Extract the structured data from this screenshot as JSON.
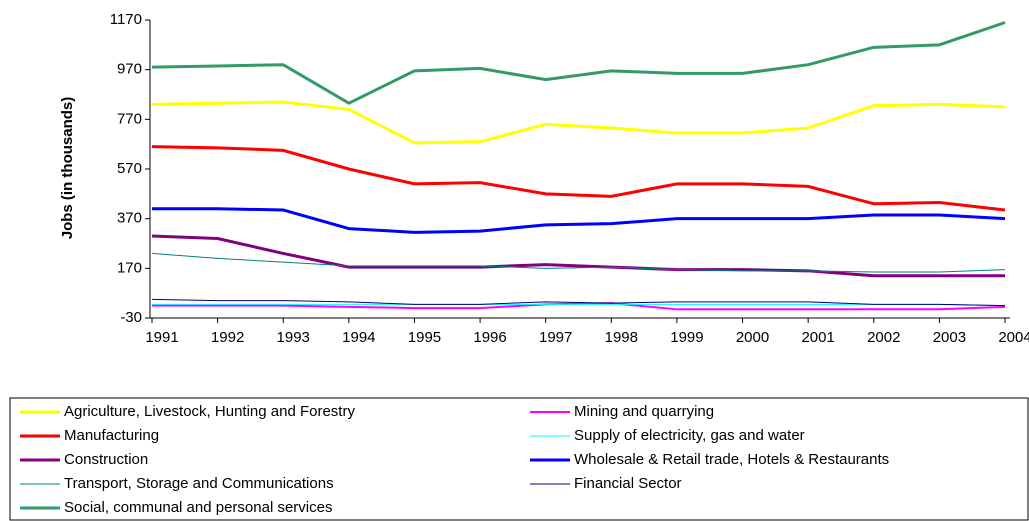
{
  "chart_data": {
    "type": "line",
    "y_label": "Jobs (in thousands)",
    "categories": [
      "1991",
      "1992",
      "1993",
      "1994",
      "1995",
      "1996",
      "1997",
      "1998",
      "1999",
      "2000",
      "2001",
      "2002",
      "2003",
      "2004"
    ],
    "ylim": [
      -30,
      1170
    ],
    "yticks": [
      -30,
      170,
      370,
      570,
      770,
      970,
      1170
    ],
    "grid": false,
    "series": [
      {
        "name": "Agriculture, Livestock, Hunting and Forestry",
        "color": "#ffff00",
        "line_width": 3,
        "values": [
          830,
          835,
          840,
          810,
          675,
          680,
          750,
          735,
          715,
          715,
          735,
          825,
          830,
          820
        ]
      },
      {
        "name": "Mining and quarrying",
        "color": "#ff00ff",
        "line_width": 2,
        "values": [
          20,
          20,
          20,
          15,
          10,
          10,
          25,
          30,
          5,
          5,
          5,
          5,
          5,
          15
        ]
      },
      {
        "name": "Manufacturing",
        "color": "#ff0000",
        "line_width": 3,
        "values": [
          660,
          655,
          645,
          570,
          510,
          515,
          470,
          460,
          510,
          510,
          500,
          430,
          435,
          405
        ]
      },
      {
        "name": "Supply of electricity, gas and water",
        "color": "#00ffff",
        "line_width": 1,
        "values": [
          25,
          25,
          25,
          25,
          25,
          25,
          25,
          25,
          25,
          25,
          25,
          25,
          25,
          20
        ]
      },
      {
        "name": "Construction",
        "color": "#800080",
        "line_width": 3,
        "values": [
          300,
          290,
          230,
          175,
          175,
          175,
          185,
          175,
          165,
          165,
          160,
          140,
          140,
          140
        ]
      },
      {
        "name": "Wholesale & Retail trade, Hotels &  Restaurants",
        "color": "#0000ff",
        "line_width": 3,
        "values": [
          410,
          410,
          405,
          330,
          315,
          320,
          345,
          350,
          370,
          370,
          370,
          385,
          385,
          370
        ]
      },
      {
        "name": "Transport, Storage and Communications",
        "color": "#008080",
        "line_width": 1,
        "values": [
          230,
          210,
          195,
          180,
          180,
          180,
          170,
          175,
          165,
          160,
          160,
          155,
          155,
          165
        ]
      },
      {
        "name": "Financial Sector",
        "color": "#000080",
        "line_width": 1,
        "values": [
          45,
          40,
          40,
          35,
          25,
          25,
          35,
          30,
          35,
          35,
          35,
          25,
          25,
          20
        ]
      },
      {
        "name": "Social, communal and personal services",
        "color": "#339966",
        "line_width": 3,
        "values": [
          980,
          985,
          990,
          835,
          965,
          975,
          930,
          965,
          955,
          955,
          990,
          1060,
          1070,
          1160
        ]
      }
    ]
  }
}
